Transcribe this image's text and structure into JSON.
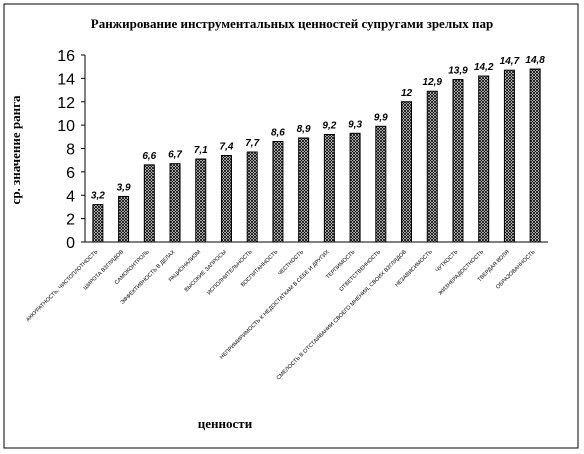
{
  "chart_data": {
    "type": "bar",
    "title": "Ранжирование инструментальных ценностей супругами зрелых пар",
    "x_label": "ценности",
    "y_label": "ср. значение ранга",
    "categories": [
      "АККУРАТНОСТЬ, ЧИСТОПЛОТНОСТЬ",
      "ШИРОТА ВЗГЛЯДОВ",
      "САМОКОНТРОЛЬ",
      "ЭФФЕКТИВНОСТЬ В ДЕЛАХ",
      "РАЦИОНАЛИЗМ",
      "ВЫСОКИЕ ЗАПРОСЫ",
      "ИСПОЛНИТЕЛЬНОСТЬ",
      "ВОСПИТАННОСТЬ",
      "ЧЕСТНОСТЬ",
      "НЕПРИМИРИМОСТЬ К НЕДОСТАТКАМ В СЕБЕ И ДРУГИХ",
      "ТЕРПИМОСТЬ",
      "ОТВЕТСТВЕННОСТЬ",
      "СМЕЛОСТЬ В ОТСТАИВАНИИ СВОЕГО МНЕНИЯ, СВОИХ ВЗГЛЯДОВ",
      "НЕЗАВИСИМОСТЬ",
      "ЧУТКОСТЬ",
      "ЖИЗНЕРАДОСТНОСТЬ",
      "ТВЕРДАЯ ВОЛЯ",
      "ОБРАЗОВАННОСТЬ"
    ],
    "values": [
      3.2,
      3.9,
      6.6,
      6.7,
      7.1,
      7.4,
      7.7,
      8.6,
      8.9,
      9.2,
      9.3,
      9.9,
      12,
      12.9,
      13.9,
      14.2,
      14.7,
      14.8
    ],
    "value_labels": [
      "3,2",
      "3,9",
      "6,6",
      "6,7",
      "7,1",
      "7,4",
      "7,7",
      "8,6",
      "8,9",
      "9,2",
      "9,3",
      "9,9",
      "12",
      "12,9",
      "13,9",
      "14,2",
      "14,7",
      "14,8"
    ],
    "color": "#000000",
    "ylim": [
      0,
      16
    ],
    "yticks": [
      0,
      2,
      4,
      6,
      8,
      10,
      12,
      14,
      16
    ],
    "grid": false
  }
}
